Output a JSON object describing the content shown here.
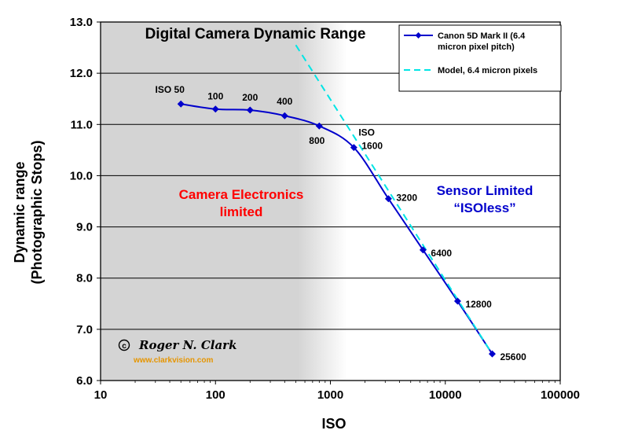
{
  "colors": {
    "series": "#0000cc",
    "model": "#00e5e5",
    "electronics_text": "#ff0000",
    "sensor_text": "#0000cc",
    "url": "#e69500",
    "shade": "#d4d4d4"
  },
  "chart_data": {
    "type": "line",
    "title": "Digital Camera Dynamic Range",
    "xlabel": "ISO",
    "ylabel_line1": "Dynamic range",
    "ylabel_line2": "(Photographic Stops)",
    "xscale": "log",
    "xlim": [
      10,
      100000
    ],
    "ylim": [
      6.0,
      13.0
    ],
    "x_ticks": [
      10,
      100,
      1000,
      10000,
      100000
    ],
    "x_tick_labels": [
      "10",
      "100",
      "1000",
      "10000",
      "100000"
    ],
    "y_ticks": [
      6,
      7,
      8,
      9,
      10,
      11,
      12,
      13
    ],
    "y_tick_labels": [
      "6.0",
      "7.0",
      "8.0",
      "9.0",
      "10.0",
      "11.0",
      "12.0",
      "13.0"
    ],
    "grid": "horizontal",
    "legend_position": "top-right",
    "series": [
      {
        "name": "Canon 5D Mark II (6.4 micron pixel pitch)",
        "x": [
          50,
          100,
          200,
          400,
          800,
          1600,
          3200,
          6400,
          12800,
          25600
        ],
        "y": [
          11.4,
          11.3,
          11.28,
          11.17,
          10.97,
          10.55,
          9.55,
          8.55,
          7.55,
          6.52
        ],
        "point_labels": [
          "ISO 50",
          "100",
          "200",
          "400",
          "800",
          "ISO 1600",
          "3200",
          "6400",
          "12800",
          "25600"
        ],
        "style": "solid-diamond"
      },
      {
        "name": "Model, 6.4 micron pixels",
        "x": [
          500,
          25600
        ],
        "y": [
          12.55,
          6.52
        ],
        "style": "dashed"
      }
    ],
    "annotations": {
      "electronics_line1": "Camera Electronics",
      "electronics_line2": "limited",
      "sensor_line1": "Sensor Limited",
      "sensor_line2": "“ISOless”",
      "copyright_symbol": "c",
      "copyright_name": "Roger N. Clark",
      "url": "www.clarkvision.com"
    }
  }
}
